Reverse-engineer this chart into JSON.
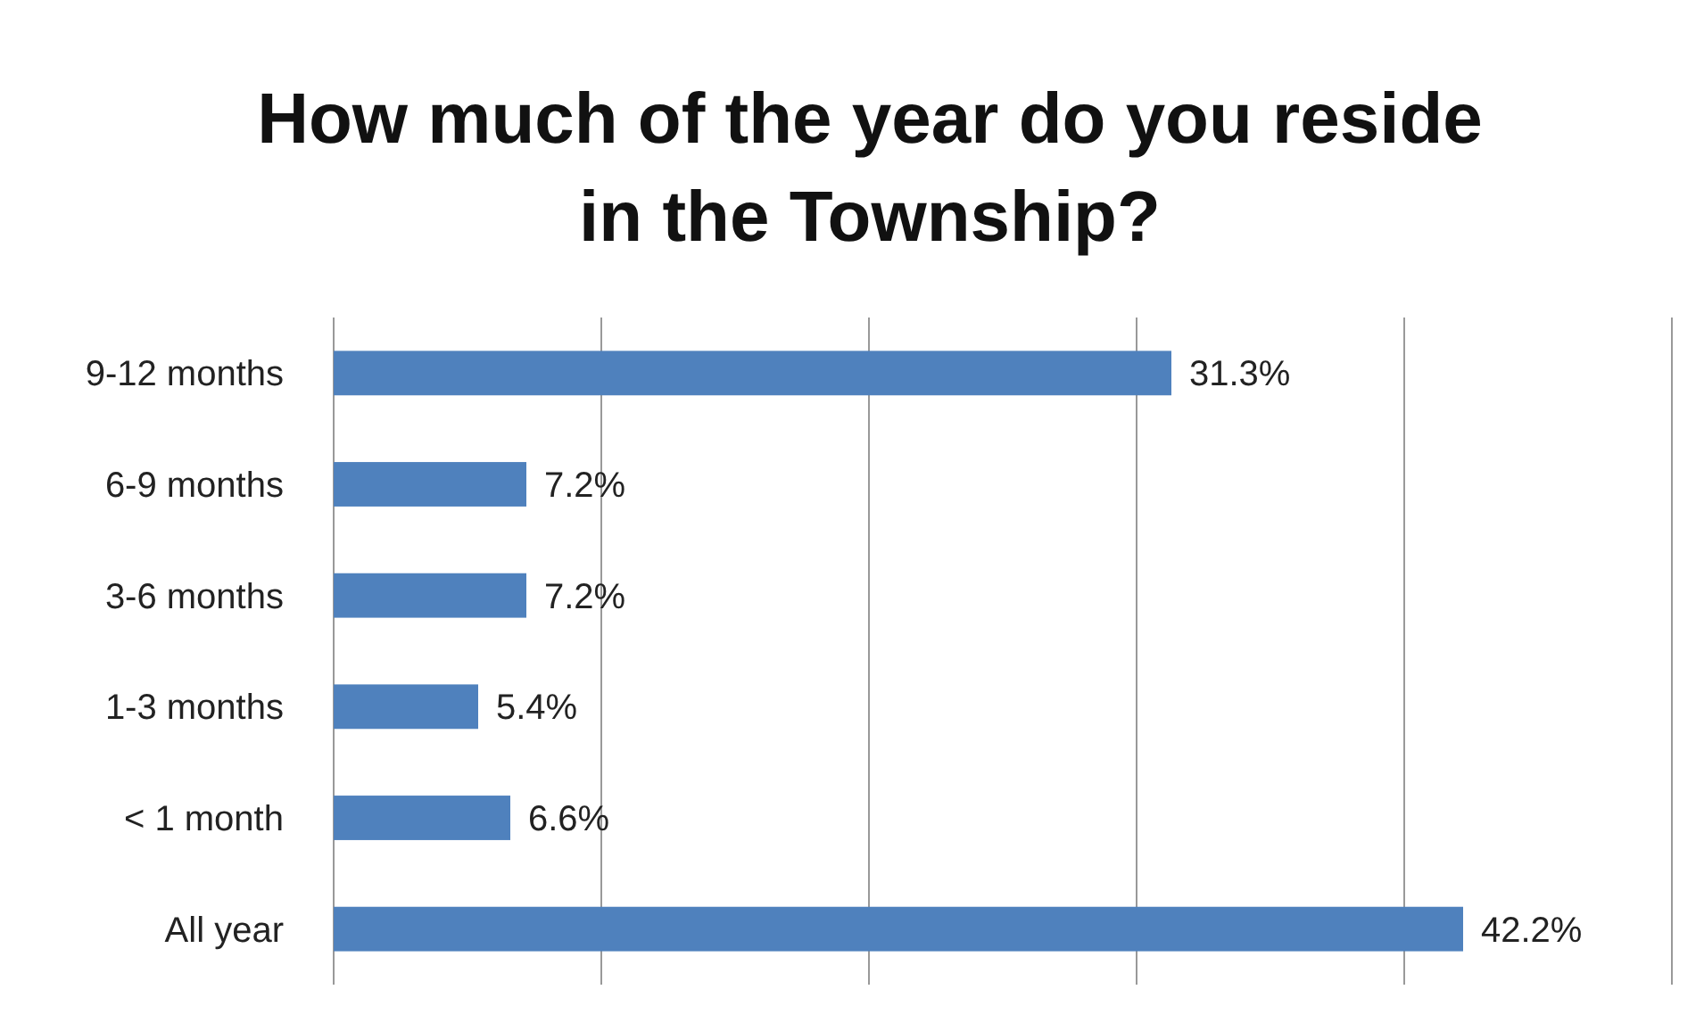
{
  "chart_data": {
    "type": "bar",
    "orientation": "horizontal",
    "title": "How much of the year do you reside in the Township?",
    "categories": [
      "9-12 months",
      "6-9 months",
      "3-6 months",
      "1-3 months",
      "< 1 month",
      "All year"
    ],
    "values": [
      31.3,
      7.2,
      7.2,
      5.4,
      6.6,
      42.2
    ],
    "value_labels": [
      "31.3%",
      "7.2%",
      "7.2%",
      "5.4%",
      "6.6%",
      "42.2%"
    ],
    "color": "#4f81bd",
    "xlim": [
      0,
      50
    ],
    "xticks": [
      {
        "value": 0,
        "label": null
      },
      {
        "value": 10,
        "label": null
      },
      {
        "value": 20,
        "label": null
      },
      {
        "value": 30,
        "label": null
      },
      {
        "value": 40,
        "label": null
      },
      {
        "value": 50,
        "label": null
      }
    ],
    "grid": "x",
    "tick_labels": "y"
  }
}
